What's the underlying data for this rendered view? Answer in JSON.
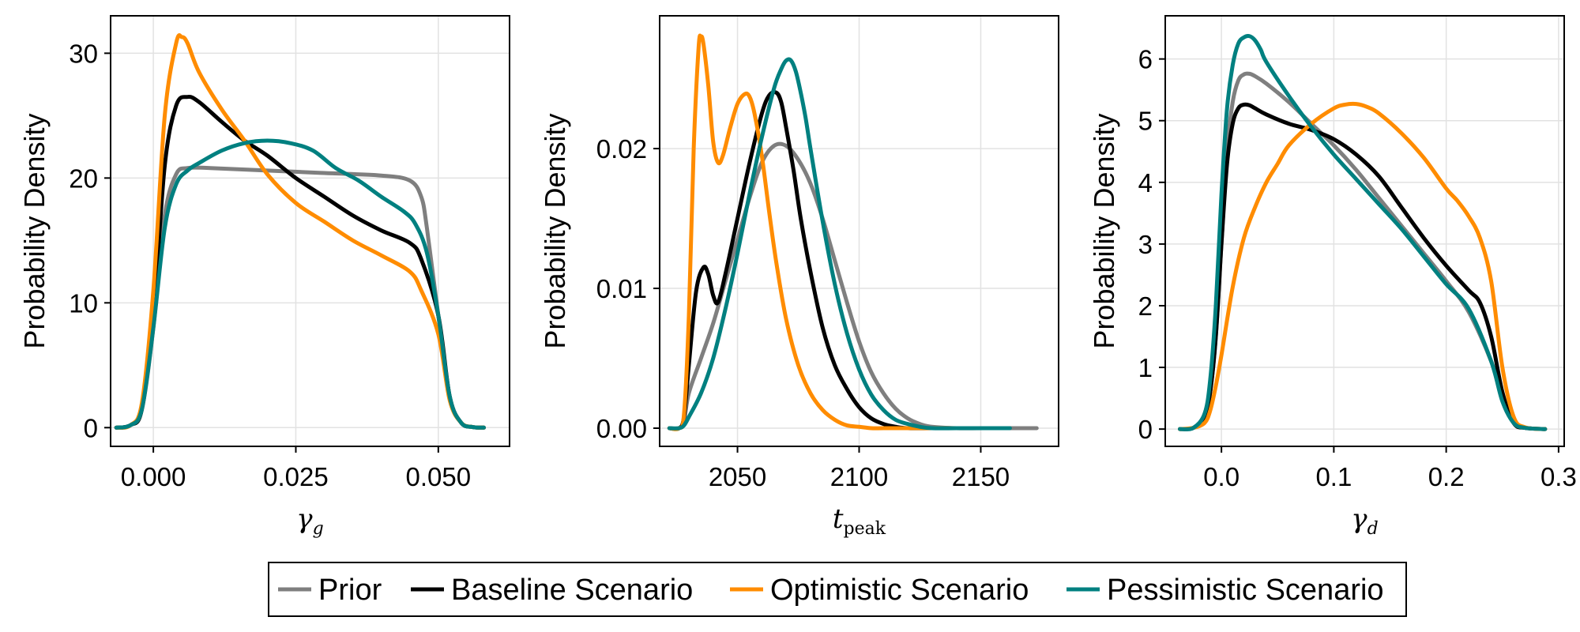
{
  "chart_data": [
    {
      "type": "line",
      "xlabel": "γ",
      "xlabel_sub": "g",
      "ylabel": "Probability Density",
      "xlim": [
        -0.0075,
        0.0625
      ],
      "ylim": [
        -1.5,
        33
      ],
      "xticks": [
        0.0,
        0.025,
        0.05
      ],
      "xtick_labels": [
        "0.000",
        "0.025",
        "0.050"
      ],
      "yticks": [
        0,
        10,
        20,
        30
      ],
      "ytick_labels": [
        "0",
        "10",
        "20",
        "30"
      ],
      "grid": true,
      "series": [
        {
          "name": "Prior",
          "x": [
            -0.0065,
            -0.004,
            -0.002,
            0,
            0.002,
            0.004,
            0.006,
            0.01,
            0.02,
            0.03,
            0.04,
            0.045,
            0.047,
            0.048,
            0.05,
            0.052,
            0.054,
            0.056,
            0.058
          ],
          "y": [
            0,
            0.2,
            1.5,
            8,
            17,
            20.3,
            20.8,
            20.8,
            20.6,
            20.4,
            20.2,
            19.8,
            18.5,
            16,
            9,
            2.5,
            0.4,
            0.05,
            0
          ]
        },
        {
          "name": "Baseline Scenario",
          "x": [
            -0.0065,
            -0.004,
            -0.002,
            0,
            0.002,
            0.004,
            0.006,
            0.008,
            0.012,
            0.016,
            0.02,
            0.025,
            0.03,
            0.035,
            0.04,
            0.045,
            0.047,
            0.05,
            0.052,
            0.054,
            0.056,
            0.058
          ],
          "y": [
            0,
            0.2,
            1.5,
            9,
            21,
            25.8,
            26.5,
            26.1,
            24.5,
            23,
            21.8,
            20,
            18.5,
            17,
            15.8,
            14.8,
            13.5,
            9,
            2.5,
            0.4,
            0.05,
            0
          ]
        },
        {
          "name": "Optimistic Scenario",
          "x": [
            -0.0065,
            -0.004,
            -0.002,
            0,
            0.002,
            0.004,
            0.005,
            0.006,
            0.008,
            0.012,
            0.016,
            0.02,
            0.025,
            0.03,
            0.035,
            0.04,
            0.045,
            0.047,
            0.05,
            0.052,
            0.054,
            0.056,
            0.058
          ],
          "y": [
            0,
            0.2,
            2,
            11,
            25,
            30.8,
            31.3,
            30.8,
            28.5,
            25.5,
            23,
            20.3,
            18,
            16.5,
            15,
            13.8,
            12.5,
            11,
            7.5,
            2.2,
            0.4,
            0.05,
            0
          ]
        },
        {
          "name": "Pessimistic Scenario",
          "x": [
            -0.0065,
            -0.004,
            -0.002,
            0,
            0.002,
            0.004,
            0.006,
            0.008,
            0.012,
            0.016,
            0.02,
            0.024,
            0.028,
            0.032,
            0.036,
            0.04,
            0.044,
            0.046,
            0.048,
            0.05,
            0.052,
            0.054,
            0.056,
            0.058
          ],
          "y": [
            0,
            0.2,
            1.5,
            8,
            16,
            19.5,
            20.6,
            21.2,
            22.2,
            22.8,
            23,
            22.8,
            22.2,
            20.8,
            19.8,
            18.5,
            17.3,
            16.3,
            14,
            9,
            2.5,
            0.4,
            0.05,
            0
          ]
        }
      ]
    },
    {
      "type": "line",
      "xlabel": "t",
      "xlabel_sub": "peak",
      "ylabel": "Probability Density",
      "xlim": [
        2018,
        2182
      ],
      "ylim": [
        -0.0013,
        0.0295
      ],
      "xticks": [
        2050,
        2100,
        2150
      ],
      "xtick_labels": [
        "2050",
        "2100",
        "2150"
      ],
      "yticks": [
        0,
        0.01,
        0.02
      ],
      "ytick_labels": [
        "0.00",
        "0.01",
        "0.02"
      ],
      "grid": true,
      "series": [
        {
          "name": "Prior",
          "x": [
            2022,
            2026,
            2028,
            2030,
            2035,
            2040,
            2045,
            2050,
            2055,
            2060,
            2065,
            2070,
            2075,
            2080,
            2085,
            2090,
            2095,
            2100,
            2105,
            2110,
            2115,
            2120,
            2125,
            2130,
            2140,
            2150,
            2160,
            2173
          ],
          "y": [
            0,
            0,
            0.0005,
            0.0025,
            0.005,
            0.0075,
            0.0105,
            0.0135,
            0.0165,
            0.019,
            0.0202,
            0.0202,
            0.0192,
            0.0175,
            0.015,
            0.012,
            0.009,
            0.0062,
            0.004,
            0.0025,
            0.0014,
            0.0007,
            0.0003,
            0.0001,
            0,
            0,
            0,
            0
          ]
        },
        {
          "name": "Baseline Scenario",
          "x": [
            2022,
            2026,
            2028,
            2030,
            2033,
            2036,
            2038,
            2040,
            2042,
            2045,
            2050,
            2055,
            2060,
            2063,
            2066,
            2068,
            2070,
            2073,
            2076,
            2080,
            2085,
            2090,
            2095,
            2100,
            2105,
            2110,
            2115,
            2120,
            2130,
            2140
          ],
          "y": [
            0,
            0,
            0.0008,
            0.0045,
            0.0098,
            0.0115,
            0.011,
            0.0095,
            0.009,
            0.011,
            0.015,
            0.019,
            0.0225,
            0.0238,
            0.024,
            0.0233,
            0.0215,
            0.0185,
            0.015,
            0.0112,
            0.0072,
            0.0045,
            0.0028,
            0.0015,
            0.0007,
            0.0003,
            0.0001,
            0,
            0,
            0
          ]
        },
        {
          "name": "Optimistic Scenario",
          "x": [
            2022,
            2026,
            2028,
            2030,
            2032,
            2034,
            2035,
            2036,
            2038,
            2040,
            2042,
            2044,
            2047,
            2050,
            2053,
            2055,
            2057,
            2060,
            2063,
            2066,
            2070,
            2075,
            2080,
            2085,
            2090,
            2095,
            2100,
            2105,
            2110,
            2120,
            2130,
            2140,
            2160
          ],
          "y": [
            0,
            0,
            0.001,
            0.008,
            0.02,
            0.0272,
            0.028,
            0.0275,
            0.0245,
            0.0205,
            0.019,
            0.0195,
            0.0215,
            0.0232,
            0.0239,
            0.0237,
            0.0225,
            0.0195,
            0.0155,
            0.0118,
            0.0078,
            0.0045,
            0.0025,
            0.0013,
            0.0006,
            0.0002,
            0.0001,
            0,
            0,
            0,
            0,
            0,
            0
          ]
        },
        {
          "name": "Pessimistic Scenario",
          "x": [
            2022,
            2026,
            2028,
            2030,
            2035,
            2040,
            2045,
            2050,
            2055,
            2060,
            2065,
            2068,
            2070,
            2072,
            2074,
            2076,
            2078,
            2080,
            2085,
            2090,
            2095,
            2100,
            2105,
            2110,
            2115,
            2120,
            2125,
            2130,
            2140,
            2150,
            2162
          ],
          "y": [
            0,
            0,
            0.0002,
            0.0008,
            0.0025,
            0.005,
            0.0085,
            0.0125,
            0.0168,
            0.0208,
            0.0243,
            0.0257,
            0.0263,
            0.0263,
            0.0255,
            0.024,
            0.0222,
            0.02,
            0.0148,
            0.0103,
            0.0068,
            0.0042,
            0.0024,
            0.0013,
            0.0006,
            0.0003,
            0.0001,
            0,
            0,
            0,
            0
          ]
        }
      ]
    },
    {
      "type": "line",
      "xlabel": "γ",
      "xlabel_sub": "d",
      "ylabel": "Probability Density",
      "xlim": [
        -0.05,
        0.305
      ],
      "ylim": [
        -0.28,
        6.7
      ],
      "xticks": [
        0.0,
        0.1,
        0.2,
        0.3
      ],
      "xtick_labels": [
        "0.0",
        "0.1",
        "0.2",
        "0.3"
      ],
      "yticks": [
        0,
        1,
        2,
        3,
        4,
        5,
        6
      ],
      "ytick_labels": [
        "0",
        "1",
        "2",
        "3",
        "4",
        "5",
        "6"
      ],
      "grid": true,
      "series": [
        {
          "name": "Prior",
          "x": [
            -0.037,
            -0.025,
            -0.015,
            -0.01,
            -0.005,
            0,
            0.005,
            0.01,
            0.015,
            0.02,
            0.025,
            0.03,
            0.04,
            0.06,
            0.08,
            0.1,
            0.12,
            0.14,
            0.16,
            0.18,
            0.2,
            0.22,
            0.24,
            0.25,
            0.26,
            0.27,
            0.288
          ],
          "y": [
            0,
            0.02,
            0.2,
            0.6,
            1.5,
            3,
            4.5,
            5.3,
            5.65,
            5.75,
            5.76,
            5.72,
            5.6,
            5.3,
            4.95,
            4.6,
            4.2,
            3.75,
            3.3,
            2.85,
            2.4,
            1.9,
            1.1,
            0.5,
            0.1,
            0.02,
            0
          ]
        },
        {
          "name": "Baseline Scenario",
          "x": [
            -0.037,
            -0.025,
            -0.015,
            -0.01,
            -0.005,
            0,
            0.005,
            0.01,
            0.015,
            0.02,
            0.025,
            0.03,
            0.04,
            0.06,
            0.08,
            0.1,
            0.12,
            0.14,
            0.16,
            0.18,
            0.2,
            0.22,
            0.23,
            0.24,
            0.25,
            0.26,
            0.27,
            0.288
          ],
          "y": [
            0,
            0.02,
            0.2,
            0.6,
            1.5,
            3,
            4.3,
            4.95,
            5.2,
            5.26,
            5.25,
            5.2,
            5.1,
            4.95,
            4.85,
            4.7,
            4.45,
            4.1,
            3.6,
            3.1,
            2.65,
            2.25,
            2.05,
            1.5,
            0.6,
            0.1,
            0.02,
            0
          ]
        },
        {
          "name": "Optimistic Scenario",
          "x": [
            -0.037,
            -0.025,
            -0.015,
            -0.01,
            -0.005,
            0,
            0.01,
            0.02,
            0.03,
            0.04,
            0.05,
            0.06,
            0.08,
            0.1,
            0.11,
            0.12,
            0.13,
            0.14,
            0.16,
            0.18,
            0.2,
            0.21,
            0.22,
            0.23,
            0.24,
            0.25,
            0.26,
            0.27,
            0.288
          ],
          "y": [
            0,
            0.02,
            0.1,
            0.3,
            0.7,
            1.2,
            2.3,
            3.1,
            3.6,
            4.0,
            4.3,
            4.6,
            4.95,
            5.2,
            5.26,
            5.27,
            5.22,
            5.12,
            4.8,
            4.4,
            3.9,
            3.7,
            3.45,
            3.1,
            2.4,
            1.0,
            0.2,
            0.03,
            0
          ]
        },
        {
          "name": "Pessimistic Scenario",
          "x": [
            -0.037,
            -0.025,
            -0.015,
            -0.01,
            -0.005,
            0,
            0.005,
            0.01,
            0.015,
            0.02,
            0.025,
            0.03,
            0.035,
            0.04,
            0.06,
            0.08,
            0.1,
            0.12,
            0.14,
            0.16,
            0.18,
            0.2,
            0.22,
            0.24,
            0.25,
            0.26,
            0.27,
            0.288
          ],
          "y": [
            0,
            0.02,
            0.25,
            0.8,
            2,
            3.8,
            5.2,
            5.9,
            6.25,
            6.35,
            6.37,
            6.3,
            6.15,
            5.95,
            5.4,
            4.9,
            4.45,
            4.05,
            3.65,
            3.25,
            2.8,
            2.35,
            1.95,
            1.1,
            0.45,
            0.1,
            0.02,
            0
          ]
        }
      ]
    }
  ],
  "legend": {
    "placement": "bottom-center",
    "entries": [
      {
        "label": "Prior",
        "color": "#7f7f7f"
      },
      {
        "label": "Baseline Scenario",
        "color": "#000000"
      },
      {
        "label": "Optimistic Scenario",
        "color": "#ff8c00"
      },
      {
        "label": "Pessimistic Scenario",
        "color": "#008080"
      }
    ]
  },
  "colors": {
    "Prior": "#7f7f7f",
    "Baseline Scenario": "#000000",
    "Optimistic Scenario": "#ff8c00",
    "Pessimistic Scenario": "#008080"
  }
}
